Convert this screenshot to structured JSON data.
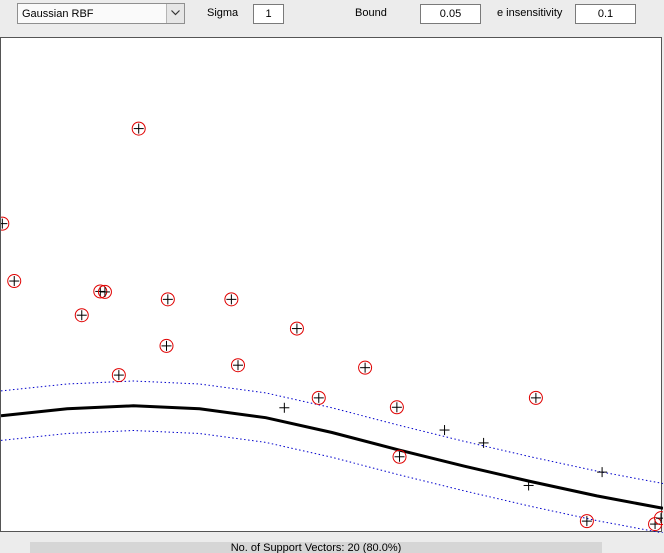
{
  "toolbar": {
    "kernel_select": {
      "value": "Gaussian RBF"
    },
    "sigma": {
      "label": "Sigma",
      "value": "1"
    },
    "bound": {
      "label": "Bound",
      "value": "0.05"
    },
    "epsilon": {
      "label": "e insensitivity",
      "value": "0.1"
    }
  },
  "status": {
    "text": "No. of Support Vectors: 20 (80.0%)"
  },
  "colors": {
    "support_ring": "#e00000",
    "tube": "#0000cc",
    "curve": "#000000",
    "point": "#000000"
  },
  "chart_data": {
    "type": "scatter",
    "xlim": [
      0,
      1
    ],
    "ylim": [
      0,
      1
    ],
    "grid": false,
    "legend": "none",
    "epsilon": 0.1,
    "points": [
      {
        "x": 0.002,
        "y": 0.625,
        "sv": true
      },
      {
        "x": 0.02,
        "y": 0.509,
        "sv": true
      },
      {
        "x": 0.122,
        "y": 0.44,
        "sv": true
      },
      {
        "x": 0.15,
        "y": 0.488,
        "sv": true
      },
      {
        "x": 0.157,
        "y": 0.487,
        "sv": true
      },
      {
        "x": 0.178,
        "y": 0.319,
        "sv": true
      },
      {
        "x": 0.208,
        "y": 0.817,
        "sv": true
      },
      {
        "x": 0.25,
        "y": 0.378,
        "sv": true
      },
      {
        "x": 0.252,
        "y": 0.472,
        "sv": true
      },
      {
        "x": 0.348,
        "y": 0.472,
        "sv": true
      },
      {
        "x": 0.358,
        "y": 0.339,
        "sv": true
      },
      {
        "x": 0.447,
        "y": 0.413,
        "sv": true
      },
      {
        "x": 0.428,
        "y": 0.253,
        "sv": false
      },
      {
        "x": 0.48,
        "y": 0.273,
        "sv": true
      },
      {
        "x": 0.55,
        "y": 0.334,
        "sv": true
      },
      {
        "x": 0.598,
        "y": 0.254,
        "sv": true
      },
      {
        "x": 0.602,
        "y": 0.154,
        "sv": true
      },
      {
        "x": 0.67,
        "y": 0.208,
        "sv": false
      },
      {
        "x": 0.729,
        "y": 0.182,
        "sv": false
      },
      {
        "x": 0.797,
        "y": 0.096,
        "sv": false
      },
      {
        "x": 0.808,
        "y": 0.273,
        "sv": true
      },
      {
        "x": 0.885,
        "y": 0.024,
        "sv": true
      },
      {
        "x": 0.908,
        "y": 0.123,
        "sv": false
      },
      {
        "x": 0.988,
        "y": 0.018,
        "sv": true
      },
      {
        "x": 0.997,
        "y": 0.03,
        "sv": true
      }
    ],
    "regression_curve": [
      {
        "x": 0.0,
        "y": 0.237
      },
      {
        "x": 0.1,
        "y": 0.251
      },
      {
        "x": 0.2,
        "y": 0.257
      },
      {
        "x": 0.3,
        "y": 0.251
      },
      {
        "x": 0.4,
        "y": 0.233
      },
      {
        "x": 0.5,
        "y": 0.203
      },
      {
        "x": 0.6,
        "y": 0.168
      },
      {
        "x": 0.7,
        "y": 0.135
      },
      {
        "x": 0.8,
        "y": 0.104
      },
      {
        "x": 0.9,
        "y": 0.075
      },
      {
        "x": 1.0,
        "y": 0.05
      }
    ]
  }
}
